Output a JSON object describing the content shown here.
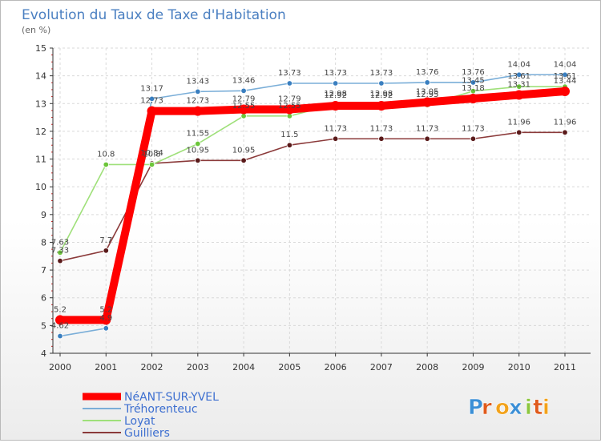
{
  "chart_data": {
    "type": "line",
    "title": "Evolution du Taux de Taxe d'Habitation",
    "ylabel": "(en %)",
    "xlabel": "",
    "ylim": [
      4,
      15
    ],
    "yticks": [
      "4",
      "5",
      "6",
      "7",
      "8",
      "9",
      "10",
      "11",
      "12",
      "13",
      "14",
      "15"
    ],
    "categories": [
      "2000",
      "2001",
      "2002",
      "2003",
      "2004",
      "2005",
      "2006",
      "2007",
      "2008",
      "2009",
      "2010",
      "2011"
    ],
    "series": [
      {
        "name": "NéANT-SUR-YVEL",
        "color": "#ff0000",
        "marker": "#ff0000",
        "values": [
          5.2,
          5.2,
          12.73,
          12.73,
          12.79,
          12.79,
          12.92,
          12.92,
          13.05,
          13.18,
          13.31,
          13.44
        ],
        "labels": [
          "5.2",
          "5.2",
          "12.73",
          "12.73",
          "12.79",
          "12.79",
          "12.92",
          "12.92",
          "13.05",
          "13.18",
          "13.31",
          "13.44"
        ]
      },
      {
        "name": "Tréhorenteuc",
        "color": "#7aaed8",
        "marker": "#3a7fc0",
        "values": [
          4.62,
          4.9,
          13.17,
          13.43,
          13.46,
          13.73,
          13.73,
          13.73,
          13.76,
          13.76,
          14.04,
          14.04
        ],
        "labels": [
          "4.62",
          "4.9",
          "13.17",
          "13.43",
          "13.46",
          "13.73",
          "13.73",
          "13.73",
          "13.76",
          "13.76",
          "14.04",
          "14.04"
        ]
      },
      {
        "name": "Loyat",
        "color": "#9fe07a",
        "marker": "#6cc63a",
        "values": [
          7.63,
          10.8,
          10.8,
          11.55,
          12.55,
          12.55,
          12.98,
          12.98,
          12.95,
          13.45,
          13.61,
          13.61
        ],
        "labels": [
          "7.63",
          "10.8",
          "10.8",
          "11.55",
          "12.55",
          "12.55",
          "12.98",
          "12.98",
          "12.95",
          "13.45",
          "13.61",
          "13.61"
        ]
      },
      {
        "name": "Guilliers",
        "color": "#8b3a3a",
        "marker": "#5a1a1a",
        "values": [
          7.33,
          7.7,
          10.84,
          10.95,
          10.95,
          11.5,
          11.73,
          11.73,
          11.73,
          11.73,
          11.96,
          11.96
        ],
        "labels": [
          "7.33",
          "7.7",
          "10.84",
          "10.95",
          "10.95",
          "11.5",
          "11.73",
          "11.73",
          "11.73",
          "11.73",
          "11.96",
          "11.96"
        ]
      }
    ]
  },
  "brand": {
    "letters": [
      "P",
      "r",
      "o",
      "x",
      "i",
      "t",
      "i"
    ],
    "colors": [
      "#3b8fd6",
      "#e05a1c",
      "#f2a21b",
      "#3b8fd6",
      "#8cc63f",
      "#e05a1c",
      "#f2a21b"
    ]
  }
}
